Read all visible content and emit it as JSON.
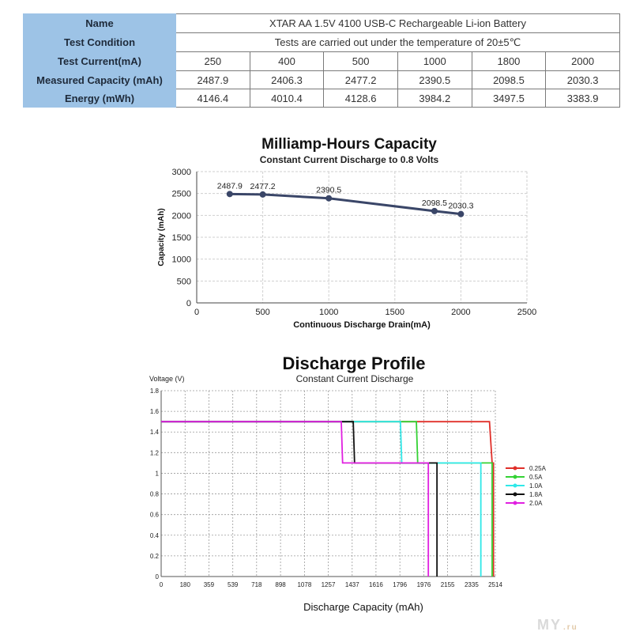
{
  "spec_table": {
    "name_label": "Name",
    "name_value": "XTAR AA 1.5V 4100 USB-C Rechargeable Li-ion Battery",
    "condition_label": "Test Condition",
    "condition_value": "Tests are carried out under the temperature of 20±5℃",
    "current_label": "Test Current(mA)",
    "currents": [
      "250",
      "400",
      "500",
      "1000",
      "1800",
      "2000"
    ],
    "capacity_label": "Measured Capacity (mAh)",
    "capacities": [
      "2487.9",
      "2406.3",
      "2477.2",
      "2390.5",
      "2098.5",
      "2030.3"
    ],
    "energy_label": "Energy (mWh)",
    "energies": [
      "4146.4",
      "4010.4",
      "4128.6",
      "3984.2",
      "3497.5",
      "3383.9"
    ]
  },
  "chart_data": [
    {
      "type": "line",
      "title": "Milliamp-Hours Capacity",
      "subtitle": "Constant Current Discharge to 0.8 Volts",
      "xlabel": "Continuous Discharge Drain(mA)",
      "ylabel": "Capacity  (mAh)",
      "xlim": [
        0,
        2500
      ],
      "ylim": [
        0,
        3000
      ],
      "xticks": [
        0,
        500,
        1000,
        1500,
        2000,
        2500
      ],
      "yticks": [
        0,
        500,
        1000,
        1500,
        2000,
        2500,
        3000
      ],
      "grid": true,
      "color": "#3a4668",
      "x": [
        250,
        500,
        1000,
        1800,
        2000
      ],
      "y": [
        2487.9,
        2477.2,
        2390.5,
        2098.5,
        2030.3
      ],
      "data_labels": [
        "2487.9",
        "2477.2",
        "2390.5",
        "2098.5",
        "2030.3"
      ]
    },
    {
      "type": "line",
      "title": "Discharge Profile",
      "subtitle": "Constant Current Discharge",
      "xlabel": "Discharge Capacity (mAh)",
      "ylabel": "Voltage  (V)",
      "xlim": [
        0,
        2514
      ],
      "ylim": [
        0,
        1.8
      ],
      "xticks": [
        "0",
        "180",
        "359",
        "539",
        "718",
        "898",
        "1078",
        "1257",
        "1437",
        "1616",
        "1796",
        "1976",
        "2155",
        "2335",
        "2514"
      ],
      "yticks": [
        "0",
        "0.2",
        "0.4",
        "0.6",
        "0.8",
        "1",
        "1.2",
        "1.4",
        "1.6",
        "1.8"
      ],
      "grid": true,
      "legend_position": "right",
      "series": [
        {
          "name": "0.25A",
          "color": "#e0302a",
          "points": [
            [
              0,
              1.5
            ],
            [
              2470,
              1.5
            ],
            [
              2490,
              1.1
            ],
            [
              2500,
              1.1
            ],
            [
              2500,
              0
            ]
          ]
        },
        {
          "name": "0.5A",
          "color": "#34d234",
          "points": [
            [
              0,
              1.5
            ],
            [
              1920,
              1.5
            ],
            [
              1930,
              1.1
            ],
            [
              2490,
              1.1
            ],
            [
              2490,
              0
            ]
          ]
        },
        {
          "name": "1.0A",
          "color": "#30e8e8",
          "points": [
            [
              0,
              1.5
            ],
            [
              1800,
              1.5
            ],
            [
              1810,
              1.1
            ],
            [
              2405,
              1.1
            ],
            [
              2405,
              0
            ]
          ]
        },
        {
          "name": "1.8A",
          "color": "#111111",
          "points": [
            [
              0,
              1.5
            ],
            [
              1445,
              1.5
            ],
            [
              1455,
              1.1
            ],
            [
              2075,
              1.1
            ],
            [
              2075,
              0
            ]
          ]
        },
        {
          "name": "2.0A",
          "color": "#e020e0",
          "points": [
            [
              0,
              1.5
            ],
            [
              1355,
              1.5
            ],
            [
              1365,
              1.1
            ],
            [
              2010,
              1.1
            ],
            [
              2010,
              0
            ]
          ]
        }
      ]
    }
  ],
  "watermark": {
    "text": "MY",
    "suffix": ".ru"
  }
}
